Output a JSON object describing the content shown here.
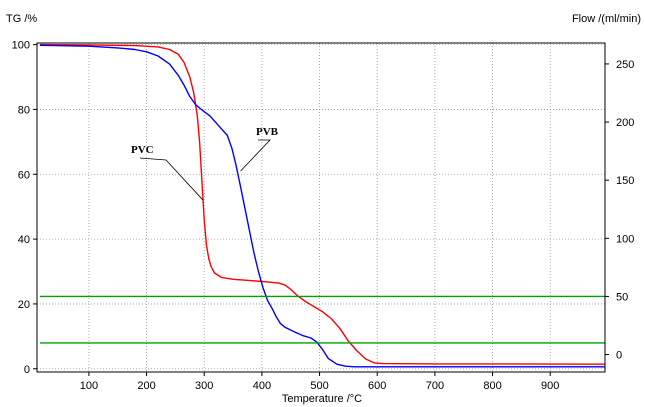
{
  "chart_data": {
    "type": "line",
    "title": "",
    "xlabel": "Temperature /°C",
    "ylabel_left": "TG /%",
    "ylabel_right": "Flow /(ml/min)",
    "xlim": [
      10,
      995
    ],
    "ylim_left": [
      -1,
      100.5
    ],
    "ylim_right": [
      -15,
      268
    ],
    "x_ticks": [
      "100",
      "200",
      "300",
      "400",
      "500",
      "600",
      "700",
      "800",
      "900"
    ],
    "y_left_ticks": [
      "0",
      "20",
      "40",
      "60",
      "80",
      "100"
    ],
    "y_right_ticks": [
      "0",
      "50",
      "100",
      "150",
      "200",
      "250"
    ],
    "grid": true,
    "series": [
      {
        "name": "PVC",
        "axis": "left",
        "color": "#ff0000",
        "x": [
          15,
          100,
          180,
          220,
          240,
          255,
          265,
          275,
          282,
          288,
          292,
          296,
          300,
          304,
          308,
          312,
          318,
          330,
          350,
          380,
          410,
          430,
          440,
          450,
          460,
          475,
          490,
          505,
          520,
          535,
          550,
          565,
          580,
          595,
          610,
          700,
          800,
          995
        ],
        "y": [
          100,
          99.9,
          99.7,
          99.3,
          98.5,
          97,
          94.5,
          90,
          85,
          78,
          70,
          58,
          46,
          38,
          34,
          31.5,
          29.5,
          28.2,
          27.6,
          27.2,
          26.8,
          26.4,
          25.8,
          24.5,
          22.8,
          20.8,
          19.2,
          17.6,
          15.5,
          12.5,
          8.5,
          5.5,
          3,
          1.8,
          1.6,
          1.5,
          1.5,
          1.4
        ]
      },
      {
        "name": "PVB",
        "axis": "left",
        "color": "#0000ff",
        "x": [
          15,
          100,
          150,
          180,
          200,
          220,
          240,
          255,
          265,
          275,
          285,
          295,
          310,
          325,
          340,
          348,
          355,
          362,
          370,
          378,
          386,
          394,
          402,
          410,
          418,
          425,
          432,
          440,
          455,
          470,
          485,
          495,
          505,
          515,
          530,
          545,
          560,
          600,
          700,
          995
        ],
        "y": [
          99.8,
          99.5,
          99,
          98.5,
          97.8,
          96.5,
          94,
          90.5,
          87.5,
          84,
          81.5,
          80,
          78,
          75,
          72,
          68,
          63,
          57,
          50,
          43,
          36,
          30,
          25,
          21,
          18.5,
          16,
          14,
          12.8,
          11.5,
          10.3,
          9.5,
          8.3,
          6,
          3.2,
          1.4,
          0.8,
          0.6,
          0.6,
          0.6,
          0.6
        ]
      },
      {
        "name": "",
        "axis": "right",
        "color": "#00a000",
        "x": [
          15,
          995
        ],
        "y": [
          50,
          50
        ]
      },
      {
        "name": "",
        "axis": "right",
        "color": "#00a000",
        "x": [
          15,
          995
        ],
        "y": [
          10,
          10
        ]
      }
    ],
    "annotations": [
      {
        "text": "PVC",
        "target_series": "PVC",
        "target": [
          298,
          52
        ]
      },
      {
        "text": "PVB",
        "target_series": "PVB",
        "target": [
          363,
          61
        ]
      }
    ]
  }
}
